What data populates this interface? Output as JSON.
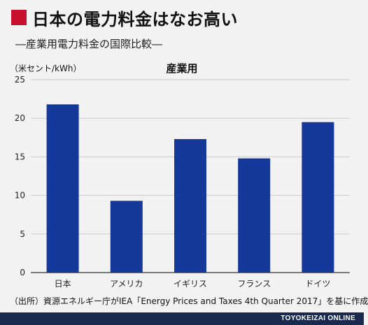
{
  "header": {
    "title": "日本の電力料金はなお高い",
    "subtitle": "―産業用電力料金の国際比較―"
  },
  "chart_data": {
    "type": "bar",
    "title": "産業用",
    "ylabel": "（米セント/kWh）",
    "xlabel": "",
    "categories": [
      "日本",
      "アメリカ",
      "イギリス",
      "フランス",
      "ドイツ"
    ],
    "values": [
      21.8,
      9.3,
      17.3,
      14.8,
      19.5
    ],
    "ylim": [
      0,
      25
    ],
    "yticks": [
      0,
      5,
      10,
      15,
      20,
      25
    ],
    "bar_color": "#14399a",
    "grid": true
  },
  "source": "（出所）資源エネルギー庁がIEA「Energy Prices and Taxes 4th Quarter 2017」を基に作成",
  "footer": {
    "brand": "TOYOKEIZAI ONLINE"
  }
}
